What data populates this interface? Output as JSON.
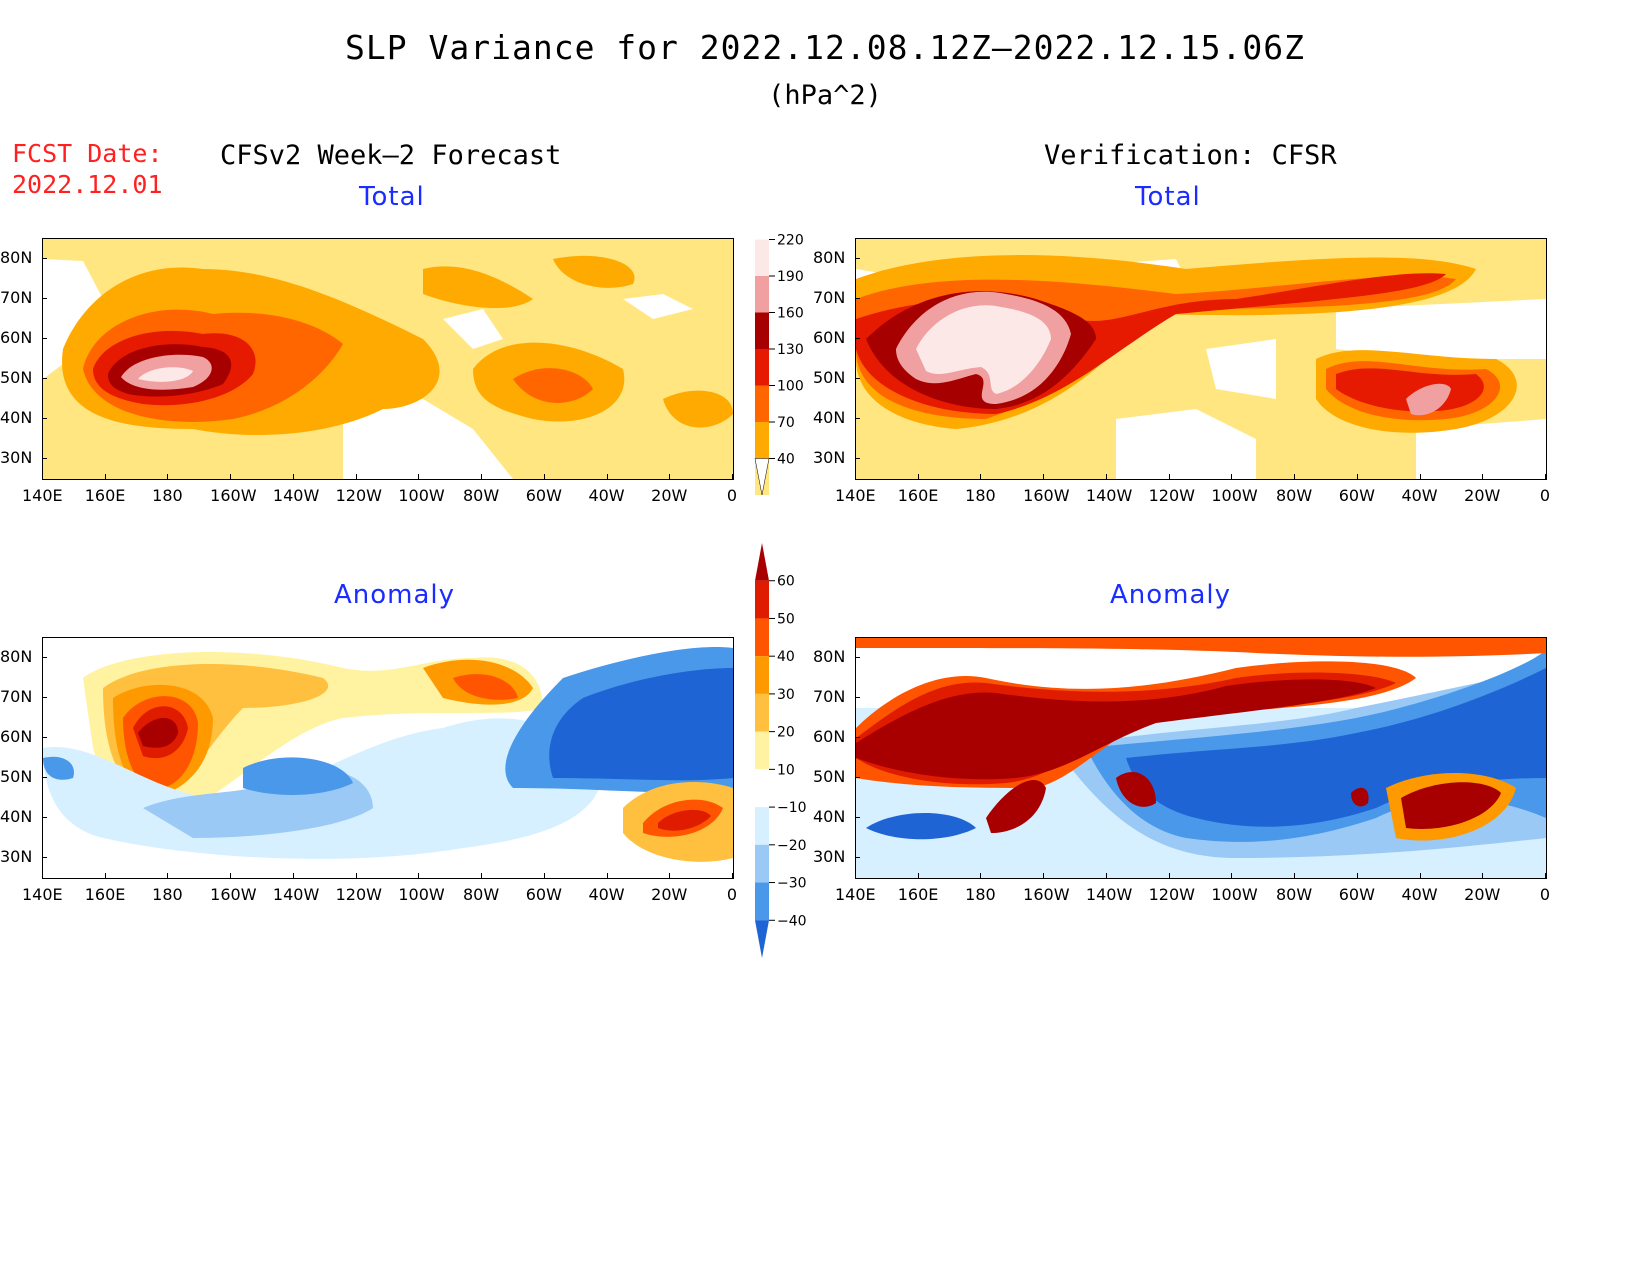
{
  "title": "SLP Variance for 2022.12.08.12Z–2022.12.15.06Z",
  "units": "(hPa^2)",
  "fcst_label": "FCST Date:",
  "fcst_date": "2022.12.01",
  "left_header": "CFSv2 Week–2 Forecast",
  "right_header": "Verification: CFSR",
  "panels": {
    "total_label": "Total",
    "anomaly_label": "Anomaly"
  },
  "axes": {
    "lon_labels": [
      "140E",
      "160E",
      "180",
      "160W",
      "140W",
      "120W",
      "100W",
      "80W",
      "60W",
      "40W",
      "20W",
      "0"
    ],
    "lat_labels": [
      "80N",
      "70N",
      "60N",
      "50N",
      "40N",
      "30N"
    ],
    "lon_range": [
      140,
      360
    ],
    "lat_range": [
      25,
      85
    ]
  },
  "colorbars": {
    "total": {
      "levels": [
        "40",
        "70",
        "100",
        "130",
        "160",
        "190",
        "220"
      ],
      "colors": [
        "#ffe680",
        "#ffaa00",
        "#ff6600",
        "#e61a00",
        "#a60000",
        "#f0a0a0",
        "#fde8e8"
      ]
    },
    "anomaly": {
      "levels": [
        "60",
        "50",
        "40",
        "30",
        "20",
        "10",
        "−10",
        "−20",
        "−30",
        "−40"
      ],
      "colors": [
        "#a80000",
        "#e01c00",
        "#ff5500",
        "#ff9900",
        "#ffc040",
        "#fff2a0",
        "#ffffff",
        "#d6f0ff",
        "#9bc9f5",
        "#4a98ea",
        "#1e64d4"
      ]
    }
  },
  "map_colors": {
    "t40": "#ffe680",
    "t70": "#ffaa00",
    "t100": "#ff6600",
    "t130": "#e61a00",
    "t160": "#a60000",
    "t190": "#f0a0a0",
    "t220": "#fde8e8",
    "a60": "#a80000",
    "a50": "#e01c00",
    "a40": "#ff5500",
    "a30": "#ff9900",
    "a20": "#ffc040",
    "a10": "#fff2a0",
    "n10": "#d6f0ff",
    "n20": "#9bc9f5",
    "n30": "#4a98ea",
    "n40": "#1e64d4"
  }
}
